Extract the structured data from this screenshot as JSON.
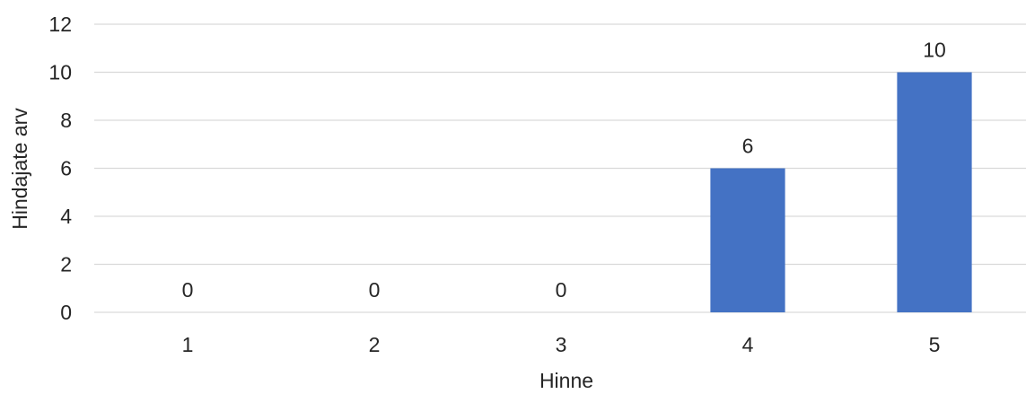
{
  "chart_data": {
    "type": "bar",
    "title": "",
    "xlabel": "Hinne",
    "ylabel": "Hindajate arv",
    "categories": [
      "1",
      "2",
      "3",
      "4",
      "5"
    ],
    "values": [
      0,
      0,
      0,
      6,
      10
    ],
    "data_labels": [
      "0",
      "0",
      "0",
      "6",
      "10"
    ],
    "ylim": [
      0,
      12
    ],
    "yticks": [
      0,
      2,
      4,
      6,
      8,
      10,
      12
    ],
    "grid": true,
    "legend": "none",
    "bar_color": "#4472C4",
    "grid_color": "#D9D9D9"
  }
}
